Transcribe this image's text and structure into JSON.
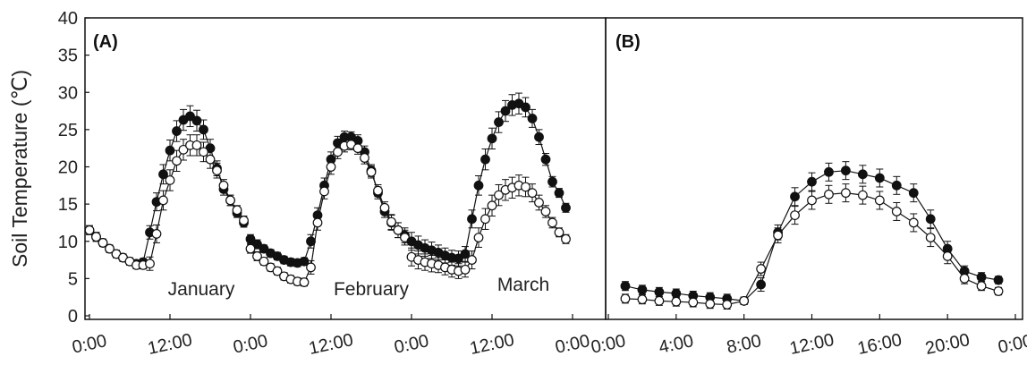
{
  "figure": {
    "ylabel": "Soil Temperature (℃)",
    "yticks": [
      0,
      5,
      10,
      15,
      20,
      25,
      30,
      35,
      40
    ]
  },
  "chart_data": [
    {
      "type": "line",
      "panel_label": "(A)",
      "ylabel": "Soil Temperature (℃)",
      "ylim": [
        0,
        40
      ],
      "x_unit": "hours",
      "xlim": [
        -0.5,
        71.5
      ],
      "xticks": [
        0,
        12,
        24,
        36,
        48,
        60,
        72
      ],
      "xtick_labels": [
        "0:00",
        "12:00",
        "0:00",
        "12:00",
        "0:00",
        "12:00",
        "0:00"
      ],
      "annotations": [
        "January",
        "February",
        "March"
      ],
      "colors": {
        "filled": "#111111",
        "open": "#ffffff",
        "line": "#111111"
      },
      "segments": [
        {
          "name": "January",
          "x": [
            0,
            1,
            2,
            3,
            4,
            5,
            6,
            7,
            8,
            9,
            10,
            11,
            12,
            13,
            14,
            15,
            16,
            17,
            18,
            19,
            20,
            21,
            22,
            23
          ],
          "series": [
            {
              "marker": "filled",
              "values": [
                11.5,
                10.6,
                9.8,
                9.0,
                8.3,
                7.8,
                7.3,
                7.0,
                7.2,
                11.2,
                15.3,
                19.0,
                22.2,
                24.8,
                26.3,
                26.8,
                26.2,
                25.0,
                22.5,
                19.8,
                17.0,
                15.5,
                13.8,
                12.5
              ]
            },
            {
              "marker": "open",
              "values": [
                11.5,
                10.6,
                9.8,
                9.0,
                8.3,
                7.8,
                7.3,
                6.8,
                6.8,
                7.0,
                11.0,
                15.5,
                18.2,
                20.8,
                22.3,
                22.9,
                22.9,
                22.0,
                21.0,
                19.5,
                17.5,
                15.5,
                14.2,
                12.8
              ]
            }
          ],
          "error": [
            0.6,
            0.6,
            0.5,
            0.5,
            0.5,
            0.5,
            0.5,
            0.5,
            0.5,
            0.9,
            1.2,
            1.3,
            1.4,
            1.4,
            1.4,
            1.4,
            1.4,
            1.3,
            1.2,
            1.0,
            0.8,
            0.7,
            0.6,
            0.6
          ]
        },
        {
          "name": "February",
          "x": [
            24,
            25,
            26,
            27,
            28,
            29,
            30,
            31,
            32,
            33,
            34,
            35,
            36,
            37,
            38,
            39,
            40,
            41,
            42,
            43,
            44,
            45,
            46,
            47
          ],
          "series": [
            {
              "marker": "filled",
              "values": [
                10.3,
                9.6,
                9.0,
                8.4,
                8.0,
                7.5,
                7.2,
                7.1,
                7.3,
                10.0,
                13.5,
                17.5,
                21.0,
                23.2,
                24.0,
                24.0,
                23.5,
                22.0,
                19.5,
                16.5,
                14.0,
                12.5,
                11.5,
                10.8
              ]
            },
            {
              "marker": "open",
              "values": [
                9.0,
                8.0,
                7.3,
                6.5,
                6.0,
                5.3,
                4.9,
                4.6,
                4.5,
                6.5,
                12.5,
                16.7,
                20.0,
                22.0,
                22.8,
                23.0,
                22.5,
                21.2,
                19.3,
                16.8,
                14.5,
                12.6,
                11.5,
                10.5
              ]
            }
          ],
          "error": [
            0.6,
            0.6,
            0.5,
            0.5,
            0.5,
            0.5,
            0.5,
            0.5,
            0.5,
            0.9,
            1.0,
            1.0,
            1.0,
            0.9,
            0.8,
            0.7,
            0.8,
            0.8,
            0.8,
            0.8,
            0.8,
            1.0,
            1.0,
            1.0
          ]
        },
        {
          "name": "March",
          "x": [
            48,
            49,
            50,
            51,
            52,
            53,
            54,
            55,
            56,
            57,
            58,
            59,
            60,
            61,
            62,
            63,
            64,
            65,
            66,
            67,
            68,
            69,
            70,
            71
          ],
          "series": [
            {
              "marker": "filled",
              "values": [
                10.0,
                9.5,
                9.1,
                8.8,
                8.5,
                8.1,
                7.8,
                7.7,
                8.3,
                13.0,
                17.5,
                21.0,
                23.8,
                26.0,
                27.5,
                28.3,
                28.5,
                28.0,
                26.5,
                24.0,
                21.0,
                18.0,
                16.5,
                14.5
              ]
            },
            {
              "marker": "open",
              "values": [
                7.9,
                7.5,
                7.2,
                7.0,
                6.8,
                6.5,
                6.2,
                6.0,
                6.2,
                7.5,
                10.5,
                13.0,
                14.8,
                16.2,
                16.9,
                17.2,
                17.5,
                17.3,
                16.5,
                15.2,
                14.0,
                12.5,
                11.2,
                10.3
              ]
            }
          ],
          "error": [
            1.2,
            1.2,
            1.1,
            1.1,
            1.0,
            1.0,
            1.0,
            1.0,
            1.0,
            1.2,
            1.3,
            1.4,
            1.4,
            1.4,
            1.4,
            1.4,
            1.4,
            1.3,
            1.2,
            1.0,
            0.8,
            0.7,
            0.6,
            0.6
          ]
        }
      ]
    },
    {
      "type": "line",
      "panel_label": "(B)",
      "ylim": [
        0,
        40
      ],
      "x_unit": "hours",
      "xlim": [
        -0.5,
        24.5
      ],
      "xticks": [
        0,
        4,
        8,
        12,
        16,
        20,
        24
      ],
      "xtick_labels": [
        "0:00",
        "4:00",
        "8:00",
        "12:00",
        "16:00",
        "20:00",
        "0:00"
      ],
      "x": [
        1,
        2,
        3,
        4,
        5,
        6,
        7,
        8,
        9,
        10,
        11,
        12,
        13,
        14,
        15,
        16,
        17,
        18,
        19,
        20,
        21,
        22,
        23
      ],
      "series": [
        {
          "marker": "filled",
          "values": [
            4.0,
            3.5,
            3.2,
            3.0,
            2.7,
            2.5,
            2.3,
            2.0,
            4.2,
            11.2,
            16.0,
            18.0,
            19.3,
            19.5,
            19.0,
            18.5,
            17.5,
            16.5,
            13.0,
            9.0,
            6.0,
            5.2,
            4.8
          ]
        },
        {
          "marker": "open",
          "values": [
            2.3,
            2.2,
            2.0,
            1.9,
            1.8,
            1.6,
            1.5,
            2.0,
            6.3,
            10.8,
            13.5,
            15.5,
            16.3,
            16.5,
            16.2,
            15.5,
            14.0,
            12.5,
            10.5,
            8.0,
            5.0,
            4.0,
            3.3
          ]
        }
      ],
      "error": [
        0.6,
        0.6,
        0.6,
        0.6,
        0.6,
        0.6,
        0.6,
        0.5,
        0.9,
        1.0,
        1.2,
        1.2,
        1.2,
        1.2,
        1.2,
        1.2,
        1.2,
        1.2,
        1.2,
        1.0,
        0.7,
        0.6,
        0.5
      ]
    }
  ]
}
